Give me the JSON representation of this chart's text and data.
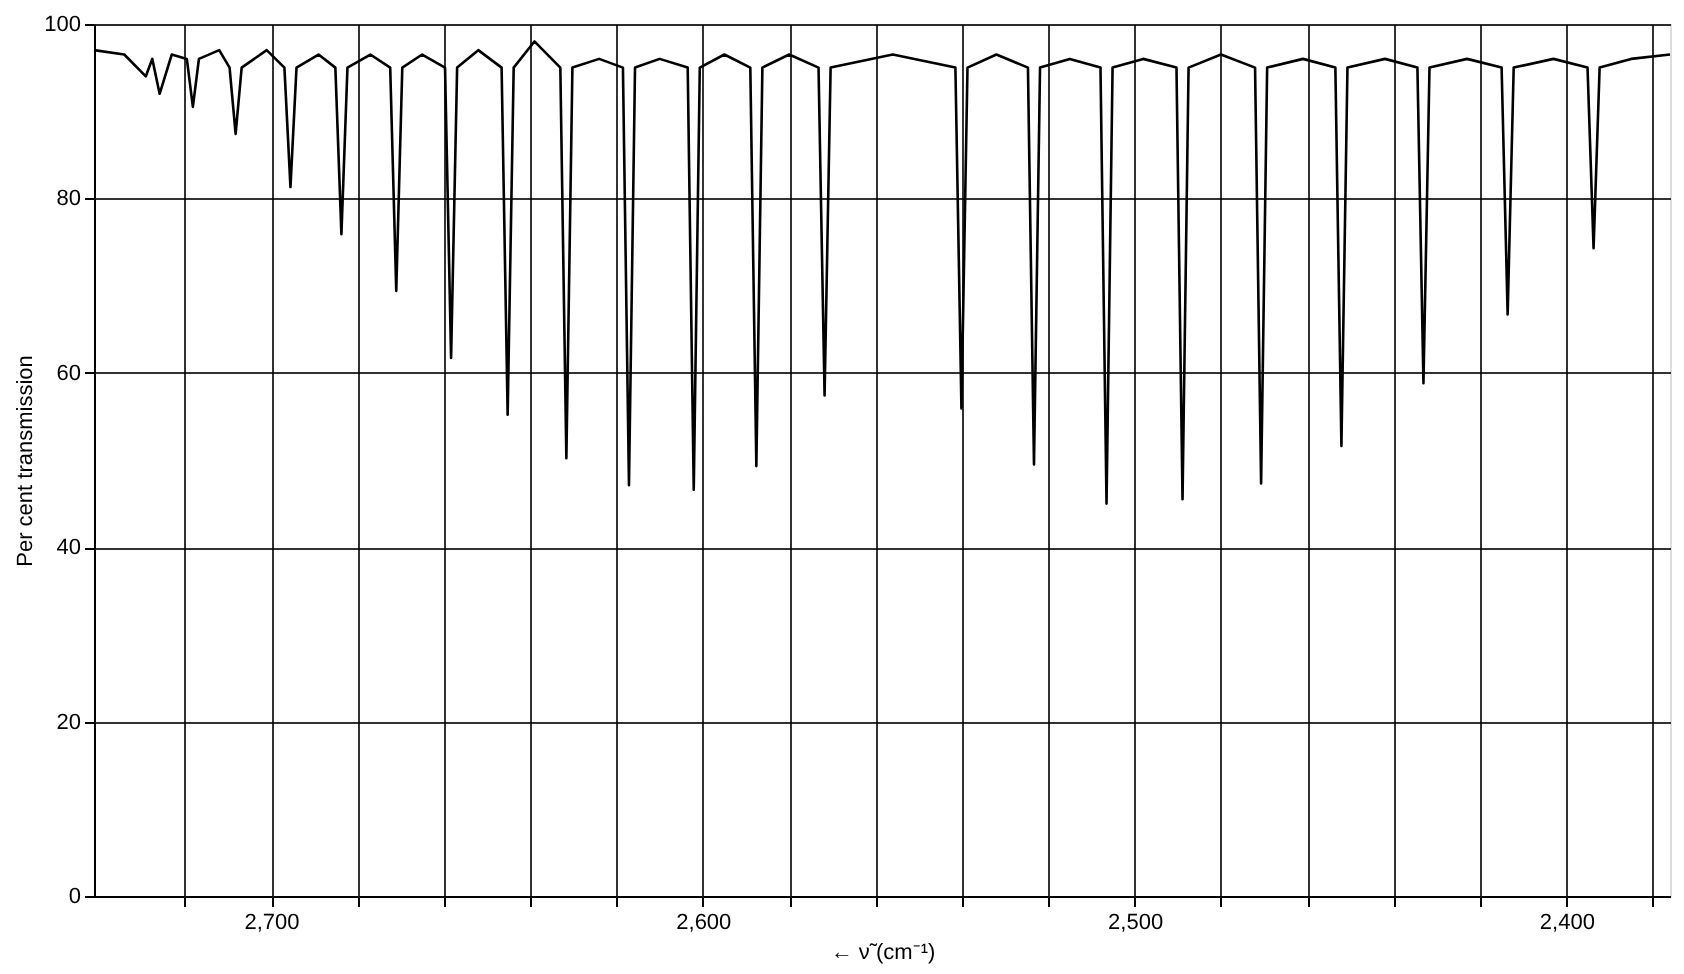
{
  "chart_data": {
    "type": "line",
    "xlabel": "← ν̃ (cm⁻¹)",
    "ylabel": "Per cent transmission",
    "xlim": [
      2741,
      2376
    ],
    "ylim": [
      0,
      100
    ],
    "xticks": [
      {
        "value": 2720,
        "label": null
      },
      {
        "value": 2700,
        "label": "2,700"
      },
      {
        "value": 2680,
        "label": null
      },
      {
        "value": 2660,
        "label": null
      },
      {
        "value": 2640,
        "label": null
      },
      {
        "value": 2620,
        "label": null
      },
      {
        "value": 2600,
        "label": "2,600"
      },
      {
        "value": 2580,
        "label": null
      },
      {
        "value": 2560,
        "label": null
      },
      {
        "value": 2540,
        "label": null
      },
      {
        "value": 2520,
        "label": null
      },
      {
        "value": 2500,
        "label": "2,500"
      },
      {
        "value": 2480,
        "label": null
      },
      {
        "value": 2460,
        "label": null
      },
      {
        "value": 2440,
        "label": null
      },
      {
        "value": 2420,
        "label": null
      },
      {
        "value": 2400,
        "label": "2,400"
      },
      {
        "value": 2380,
        "label": null
      }
    ],
    "yticks": [
      0,
      20,
      40,
      60,
      80,
      100
    ],
    "grid": true,
    "marker": "none",
    "line_style": "solid",
    "series": [
      {
        "color": "#000000",
        "x": [
          2741,
          2734,
          2729.0,
          2727.5,
          2725.8,
          2723,
          2719.5,
          2718.1,
          2716.7,
          2712,
          2709.6,
          2708.2,
          2706.8,
          2701,
          2696.9,
          2695.5,
          2694.1,
          2689,
          2685.1,
          2683.7,
          2682.3,
          2677,
          2672.4,
          2671.0,
          2669.6,
          2665,
          2659.7,
          2658.3,
          2656.9,
          2652,
          2646.6,
          2645.2,
          2643.8,
          2639,
          2633,
          2631.6,
          2630.2,
          2624,
          2618.5,
          2617.1,
          2615.7,
          2610,
          2603.5,
          2602.1,
          2600.7,
          2595,
          2589,
          2587.6,
          2586.2,
          2580,
          2573.2,
          2571.8,
          2570.4,
          2556,
          2541.5,
          2540.1,
          2538.7,
          2532,
          2524.7,
          2523.3,
          2521.9,
          2515,
          2507.9,
          2506.5,
          2505.1,
          2498,
          2490.3,
          2488.9,
          2487.5,
          2480,
          2472.1,
          2470.7,
          2469.3,
          2461,
          2453.5,
          2452.1,
          2450.7,
          2442,
          2434.5,
          2433.1,
          2431.7,
          2423,
          2415,
          2413.6,
          2412.2,
          2403,
          2395.1,
          2393.7,
          2392.3,
          2385,
          2376
        ],
        "values": [
          97,
          96.5,
          94,
          96,
          92,
          96.5,
          96,
          90.5,
          96,
          97,
          95,
          87.4,
          95,
          97,
          95,
          81.3,
          95,
          96.5,
          95,
          75.9,
          95,
          96.5,
          95,
          69.4,
          95,
          96.5,
          95,
          61.7,
          95,
          97,
          95,
          55.2,
          95,
          98,
          95,
          50.2,
          95,
          96,
          95,
          47.1,
          95,
          96,
          95,
          46.6,
          95,
          96.5,
          95,
          49.3,
          95,
          96.5,
          95,
          57.4,
          95,
          96.5,
          95,
          55.9,
          95,
          96.5,
          95,
          49.5,
          95,
          96,
          95,
          45,
          95,
          96,
          95,
          45.5,
          95,
          96.5,
          95,
          47.3,
          95,
          96,
          95,
          51.6,
          95,
          96,
          95,
          58.8,
          95,
          96,
          95,
          66.7,
          95,
          96,
          95,
          74.3,
          95,
          96,
          96.5
        ]
      }
    ]
  }
}
